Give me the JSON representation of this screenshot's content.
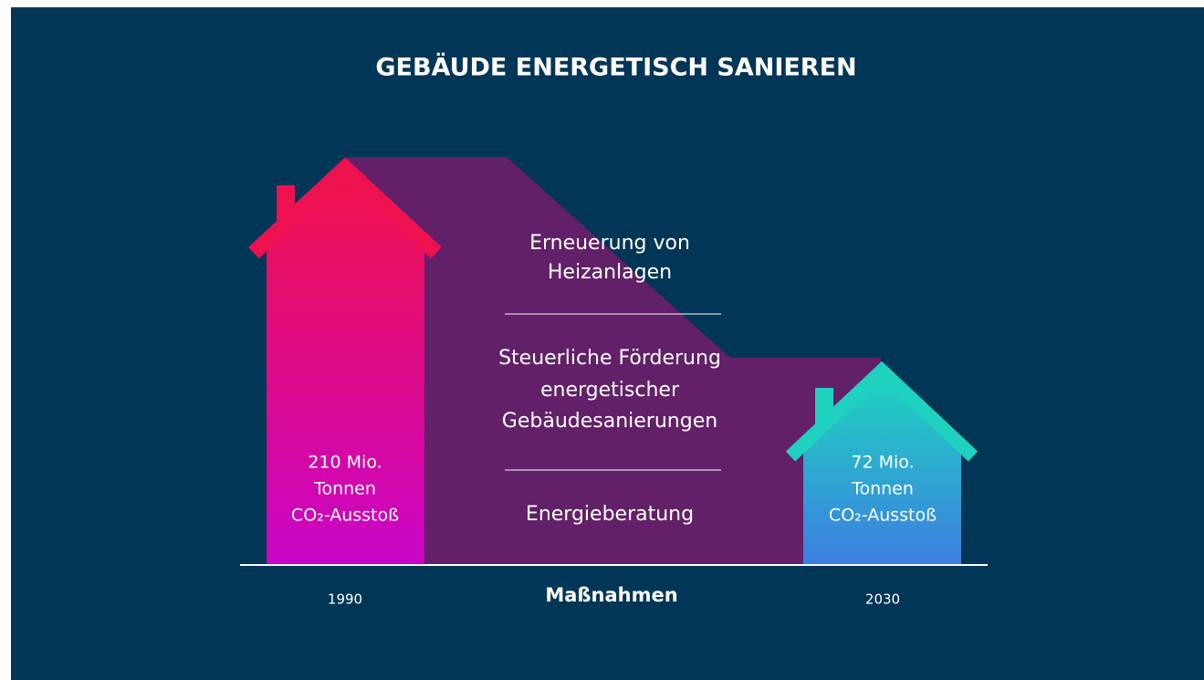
{
  "title": "GEBÄUDE ENERGETISCH SANIEREN",
  "houses": [
    {
      "year": "1990",
      "label": [
        "210 Mio.",
        "Tonnen",
        "CO₂-Ausstoß"
      ]
    },
    {
      "year": "2030",
      "label": [
        "72 Mio.",
        "Tonnen",
        "CO₂-Ausstoß"
      ]
    }
  ],
  "measures_title": "Maßnahmen",
  "measures": [
    [
      "Erneuerung von",
      "Heizanlagen"
    ],
    [
      "Steuerliche Förderung",
      "energetischer",
      "Gebäudesanierungen"
    ],
    [
      "Energieberatung"
    ]
  ]
}
